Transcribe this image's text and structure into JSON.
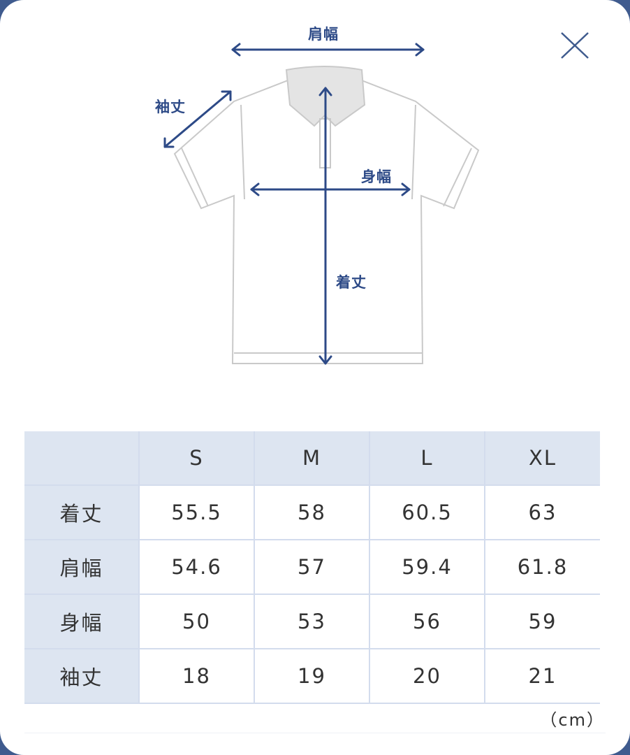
{
  "diagram": {
    "labels": {
      "shoulder_width": "肩幅",
      "sleeve_length": "袖丈",
      "body_width": "身幅",
      "length": "着丈"
    },
    "accent_color": "#2d4a87"
  },
  "close_icon": "close-icon",
  "table": {
    "headers": [
      "",
      "S",
      "M",
      "L",
      "XL"
    ],
    "rows": [
      {
        "label": "着丈",
        "values": [
          "55.5",
          "58",
          "60.5",
          "63"
        ]
      },
      {
        "label": "肩幅",
        "values": [
          "54.6",
          "57",
          "59.4",
          "61.8"
        ]
      },
      {
        "label": "身幅",
        "values": [
          "50",
          "53",
          "56",
          "59"
        ]
      },
      {
        "label": "袖丈",
        "values": [
          "18",
          "19",
          "20",
          "21"
        ]
      }
    ],
    "unit": "（cm）"
  }
}
